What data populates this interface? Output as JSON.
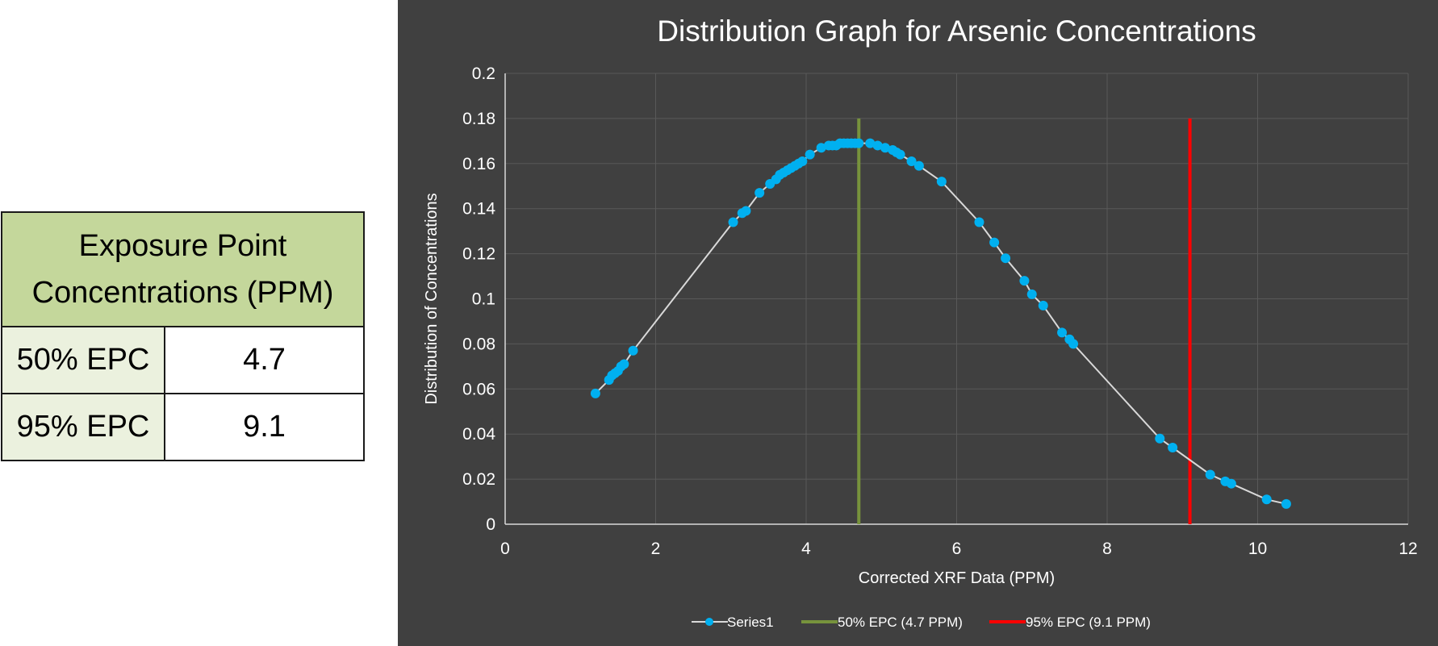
{
  "table": {
    "header_line1": "Exposure Point",
    "header_line2": "Concentrations (PPM)",
    "rows": [
      {
        "label": "50% EPC",
        "value": "4.7"
      },
      {
        "label": "95% EPC",
        "value": "9.1"
      }
    ]
  },
  "colors": {
    "panel_bg": "#404040",
    "series": "#00b0f0",
    "series_line": "#d9d9d9",
    "epc50": "#77933c",
    "epc95": "#ff0000",
    "grid": "#595959",
    "table_header_bg": "#c4d79b",
    "table_label_bg": "#ebf1de"
  },
  "chart_data": {
    "type": "scatter",
    "title": "Distribution Graph for Arsenic Concentrations",
    "xlabel": "Corrected XRF Data (PPM)",
    "ylabel": "Distribution of Concentrations",
    "xlim": [
      0,
      12
    ],
    "ylim": [
      0,
      0.2
    ],
    "xticks": [
      "0",
      "2",
      "4",
      "6",
      "8",
      "10",
      "12"
    ],
    "yticks": [
      "0",
      "0.02",
      "0.04",
      "0.06",
      "0.08",
      "0.1",
      "0.12",
      "0.14",
      "0.16",
      "0.18",
      "0.2"
    ],
    "grid": true,
    "legend_position": "bottom",
    "series": [
      {
        "name": "Series1",
        "x": [
          1.2,
          1.38,
          1.42,
          1.46,
          1.5,
          1.54,
          1.58,
          1.7,
          3.03,
          3.15,
          3.2,
          3.38,
          3.52,
          3.6,
          3.65,
          3.7,
          3.75,
          3.8,
          3.85,
          3.9,
          3.95,
          4.05,
          4.2,
          4.3,
          4.35,
          4.4,
          4.45,
          4.5,
          4.55,
          4.6,
          4.65,
          4.7,
          4.85,
          4.95,
          5.05,
          5.15,
          5.2,
          5.25,
          5.4,
          5.5,
          5.8,
          6.3,
          6.5,
          6.65,
          6.9,
          7.0,
          7.15,
          7.4,
          7.5,
          7.55,
          8.7,
          8.87,
          9.37,
          9.57,
          9.65,
          10.12,
          10.38
        ],
        "y": [
          0.058,
          0.064,
          0.066,
          0.067,
          0.068,
          0.07,
          0.071,
          0.077,
          0.134,
          0.138,
          0.139,
          0.147,
          0.151,
          0.153,
          0.155,
          0.156,
          0.157,
          0.158,
          0.159,
          0.16,
          0.161,
          0.164,
          0.167,
          0.168,
          0.168,
          0.168,
          0.169,
          0.169,
          0.169,
          0.169,
          0.169,
          0.169,
          0.169,
          0.168,
          0.167,
          0.166,
          0.165,
          0.164,
          0.161,
          0.159,
          0.152,
          0.134,
          0.125,
          0.118,
          0.108,
          0.102,
          0.097,
          0.085,
          0.082,
          0.08,
          0.038,
          0.034,
          0.022,
          0.019,
          0.018,
          0.011,
          0.009
        ]
      },
      {
        "name": "50% EPC (4.7 PPM)",
        "x": [
          4.7,
          4.7
        ],
        "y": [
          0,
          0.18
        ]
      },
      {
        "name": "95% EPC (9.1 PPM)",
        "x": [
          9.1,
          9.1
        ],
        "y": [
          0,
          0.18
        ]
      }
    ]
  }
}
